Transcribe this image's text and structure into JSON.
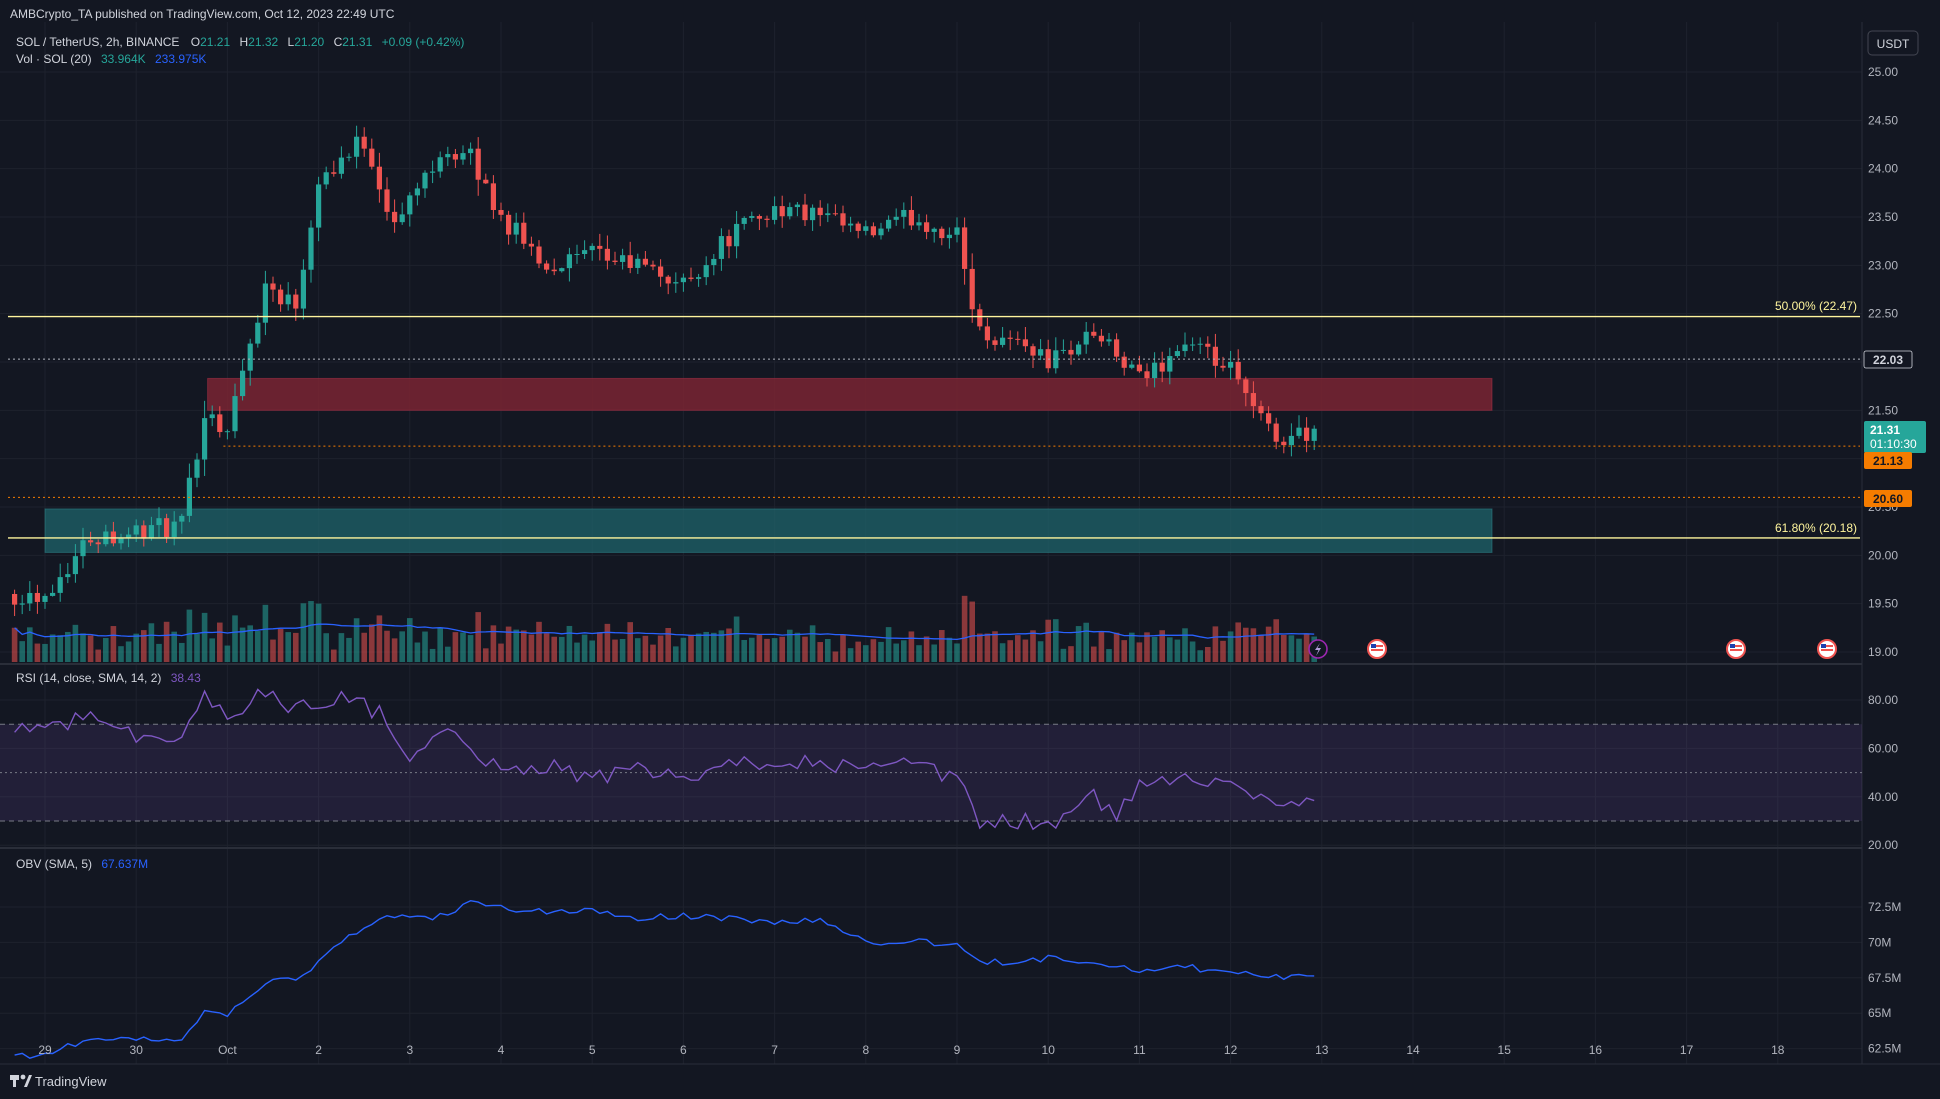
{
  "publisher": "AMBCrypto_TA published on TradingView.com, Oct 12, 2023 22:49 UTC",
  "brand": "TradingView",
  "currency_button": "USDT",
  "header": {
    "symbol": "SOL / TetherUS, 2h, BINANCE",
    "o_label": "O",
    "o_value": "21.21",
    "h_label": "H",
    "h_value": "21.32",
    "l_label": "L",
    "l_value": "21.20",
    "c_label": "C",
    "c_value": "21.31",
    "change": "+0.09 (+0.42%)",
    "vol_label": "Vol · SOL (20)",
    "vol_value": "33.964K",
    "vol_ma": "233.975K",
    "rsi_label": "RSI (14, close, SMA, 14, 2)",
    "rsi_value": "38.43",
    "obv_label": "OBV (SMA, 5)",
    "obv_value": "67.637M"
  },
  "price_labels": {
    "current": "21.31",
    "countdown": "01:10:30",
    "level_2203": "22.03",
    "level_2113": "21.13",
    "level_2060": "20.60"
  },
  "colors": {
    "up": "#26a69a",
    "down": "#ef5350",
    "fib": "#fff59d",
    "rsi": "#7e57c2",
    "obv": "#2962ff",
    "bearish_zone": "#7a2432",
    "bullish_zone": "#1e5f67",
    "accent_orange": "#f57c00"
  },
  "chart_data": {
    "type": "candlestick",
    "symbol": "SOL / TetherUS",
    "timeframe": "2h",
    "price_axis": [
      "25.00",
      "24.50",
      "24.00",
      "23.50",
      "23.00",
      "22.50",
      "22.00",
      "21.50",
      "21.00",
      "20.50",
      "20.00",
      "19.50",
      "19.00"
    ],
    "x_ticks": [
      "29",
      "30",
      "Oct",
      "2",
      "3",
      "4",
      "5",
      "6",
      "7",
      "8",
      "9",
      "10",
      "11",
      "12",
      "13",
      "14",
      "15",
      "16",
      "17",
      "18"
    ],
    "ylim": [
      19.0,
      25.0
    ],
    "fib_levels": [
      {
        "label": "50.00% (22.47)",
        "value": 22.47
      },
      {
        "label": "61.80% (20.18)",
        "value": 20.18
      }
    ],
    "zones": [
      {
        "type": "bearish-order-block",
        "from": 21.5,
        "to": 21.83
      },
      {
        "type": "bullish-order-block",
        "from": 20.03,
        "to": 20.48
      }
    ],
    "horizontal_levels": [
      22.03,
      21.13,
      20.6
    ],
    "price_path": [
      {
        "t": "Sep 29 00:00",
        "close": 19.6
      },
      {
        "t": "Sep 29 12:00",
        "close": 20.2
      },
      {
        "t": "Sep 30 00:00",
        "close": 20.25
      },
      {
        "t": "Sep 30 12:00",
        "close": 20.3
      },
      {
        "t": "Sep 30 18:00",
        "close": 21.5
      },
      {
        "t": "Oct 1 00:00",
        "close": 21.3
      },
      {
        "t": "Oct 1 10:00",
        "close": 22.8
      },
      {
        "t": "Oct 1 18:00",
        "close": 22.6
      },
      {
        "t": "Oct 2 00:00",
        "close": 23.9
      },
      {
        "t": "Oct 2 12:00",
        "close": 24.3
      },
      {
        "t": "Oct 2 20:00",
        "close": 23.4
      },
      {
        "t": "Oct 3 08:00",
        "close": 24.2
      },
      {
        "t": "Oct 3 16:00",
        "close": 24.1
      },
      {
        "t": "Oct 4 00:00",
        "close": 23.5
      },
      {
        "t": "Oct 4 12:00",
        "close": 23.0
      },
      {
        "t": "Oct 5 00:00",
        "close": 23.1
      },
      {
        "t": "Oct 5 12:00",
        "close": 23.0
      },
      {
        "t": "Oct 6 00:00",
        "close": 22.8
      },
      {
        "t": "Oct 6 12:00",
        "close": 23.3
      },
      {
        "t": "Oct 7 00:00",
        "close": 23.6
      },
      {
        "t": "Oct 7 12:00",
        "close": 23.5
      },
      {
        "t": "Oct 8 00:00",
        "close": 23.3
      },
      {
        "t": "Oct 8 12:00",
        "close": 23.5
      },
      {
        "t": "Oct 9 00:00",
        "close": 23.3
      },
      {
        "t": "Oct 9 06:00",
        "close": 22.3
      },
      {
        "t": "Oct 9 18:00",
        "close": 22.2
      },
      {
        "t": "Oct 10 00:00",
        "close": 22.0
      },
      {
        "t": "Oct 10 12:00",
        "close": 22.3
      },
      {
        "t": "Oct 11 00:00",
        "close": 21.8
      },
      {
        "t": "Oct 11 12:00",
        "close": 22.2
      },
      {
        "t": "Oct 12 00:00",
        "close": 21.9
      },
      {
        "t": "Oct 12 06:00",
        "close": 21.5
      },
      {
        "t": "Oct 12 12:00",
        "close": 21.2
      },
      {
        "t": "Oct 12 22:00",
        "close": 21.31
      }
    ],
    "rsi": {
      "label": "RSI (14, close, SMA, 14, 2)",
      "axis": [
        "80.00",
        "60.00",
        "40.00",
        "20.00"
      ],
      "ylim": [
        20,
        90
      ],
      "bands": [
        70,
        50,
        30
      ],
      "path": [
        {
          "t": "Sep 29 00:00",
          "value": 68
        },
        {
          "t": "Sep 29 12:00",
          "value": 74
        },
        {
          "t": "Sep 30 00:00",
          "value": 66
        },
        {
          "t": "Sep 30 12:00",
          "value": 62
        },
        {
          "t": "Sep 30 18:00",
          "value": 83
        },
        {
          "t": "Oct 1 00:00",
          "value": 72
        },
        {
          "t": "Oct 1 10:00",
          "value": 84
        },
        {
          "t": "Oct 1 18:00",
          "value": 76
        },
        {
          "t": "Oct 2 06:00",
          "value": 82
        },
        {
          "t": "Oct 2 18:00",
          "value": 73
        },
        {
          "t": "Oct 3 00:00",
          "value": 56
        },
        {
          "t": "Oct 3 12:00",
          "value": 67
        },
        {
          "t": "Oct 4 00:00",
          "value": 50
        },
        {
          "t": "Oct 4 12:00",
          "value": 53
        },
        {
          "t": "Oct 5 00:00",
          "value": 48
        },
        {
          "t": "Oct 5 12:00",
          "value": 51
        },
        {
          "t": "Oct 6 00:00",
          "value": 47
        },
        {
          "t": "Oct 6 12:00",
          "value": 52
        },
        {
          "t": "Oct 7 00:00",
          "value": 56
        },
        {
          "t": "Oct 7 12:00",
          "value": 54
        },
        {
          "t": "Oct 8 00:00",
          "value": 51
        },
        {
          "t": "Oct 8 12:00",
          "value": 53
        },
        {
          "t": "Oct 9 00:00",
          "value": 47
        },
        {
          "t": "Oct 9 06:00",
          "value": 29
        },
        {
          "t": "Oct 9 18:00",
          "value": 30
        },
        {
          "t": "Oct 10 00:00",
          "value": 28
        },
        {
          "t": "Oct 10 12:00",
          "value": 40
        },
        {
          "t": "Oct 10 18:00",
          "value": 32
        },
        {
          "t": "Oct 11 00:00",
          "value": 44
        },
        {
          "t": "Oct 11 12:00",
          "value": 50
        },
        {
          "t": "Oct 12 00:00",
          "value": 45
        },
        {
          "t": "Oct 12 12:00",
          "value": 38
        },
        {
          "t": "Oct 12 22:00",
          "value": 38.43
        }
      ]
    },
    "obv": {
      "label": "OBV (SMA, 5)",
      "axis": [
        "72.5M",
        "70M",
        "67.5M",
        "65M",
        "62.5M"
      ],
      "ylim": [
        60.5,
        74.0
      ],
      "path": [
        {
          "t": "Sep 29 00:00",
          "value": 62.0
        },
        {
          "t": "Sep 29 12:00",
          "value": 63.3
        },
        {
          "t": "Sep 30 00:00",
          "value": 63.1
        },
        {
          "t": "Sep 30 12:00",
          "value": 63.2
        },
        {
          "t": "Sep 30 18:00",
          "value": 65.0
        },
        {
          "t": "Oct 1 00:00",
          "value": 64.8
        },
        {
          "t": "Oct 1 10:00",
          "value": 67.2
        },
        {
          "t": "Oct 1 18:00",
          "value": 67.3
        },
        {
          "t": "Oct 2 06:00",
          "value": 70.0
        },
        {
          "t": "Oct 2 18:00",
          "value": 72.0
        },
        {
          "t": "Oct 3 06:00",
          "value": 71.6
        },
        {
          "t": "Oct 3 16:00",
          "value": 72.8
        },
        {
          "t": "Oct 4 06:00",
          "value": 72.2
        },
        {
          "t": "Oct 5 00:00",
          "value": 72.2
        },
        {
          "t": "Oct 5 12:00",
          "value": 71.7
        },
        {
          "t": "Oct 6 00:00",
          "value": 71.9
        },
        {
          "t": "Oct 6 12:00",
          "value": 71.7
        },
        {
          "t": "Oct 7 00:00",
          "value": 71.4
        },
        {
          "t": "Oct 7 12:00",
          "value": 71.6
        },
        {
          "t": "Oct 8 00:00",
          "value": 70.0
        },
        {
          "t": "Oct 8 12:00",
          "value": 70.1
        },
        {
          "t": "Oct 9 00:00",
          "value": 69.8
        },
        {
          "t": "Oct 9 06:00",
          "value": 68.6
        },
        {
          "t": "Oct 9 18:00",
          "value": 68.6
        },
        {
          "t": "Oct 10 00:00",
          "value": 68.9
        },
        {
          "t": "Oct 10 12:00",
          "value": 68.7
        },
        {
          "t": "Oct 11 00:00",
          "value": 68.0
        },
        {
          "t": "Oct 11 12:00",
          "value": 68.3
        },
        {
          "t": "Oct 12 00:00",
          "value": 67.8
        },
        {
          "t": "Oct 12 12:00",
          "value": 67.6
        },
        {
          "t": "Oct 12 22:00",
          "value": 67.637
        }
      ]
    }
  }
}
